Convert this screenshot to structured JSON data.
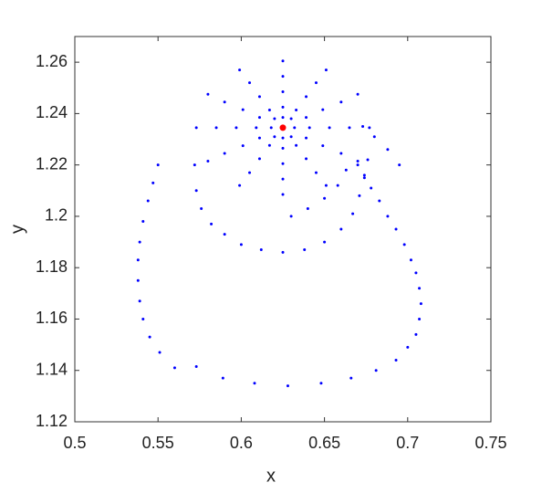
{
  "chart_data": {
    "type": "scatter",
    "xlabel": "x",
    "ylabel": "y",
    "xlim": [
      0.5,
      0.75
    ],
    "ylim": [
      1.12,
      1.27
    ],
    "xticks": [
      0.5,
      0.55,
      0.6,
      0.65,
      0.7,
      0.75
    ],
    "yticks": [
      1.12,
      1.14,
      1.16,
      1.18,
      1.2,
      1.22,
      1.24,
      1.26
    ],
    "series": [
      {
        "color": "#0000ff",
        "x": [
          0.55,
          0.547,
          0.544,
          0.541,
          0.539,
          0.538,
          0.538,
          0.539,
          0.541,
          0.545,
          0.551,
          0.56,
          0.573,
          0.589,
          0.608,
          0.628,
          0.648,
          0.666,
          0.681,
          0.693,
          0.7,
          0.705,
          0.707,
          0.708,
          0.707,
          0.705,
          0.702,
          0.698,
          0.693,
          0.688,
          0.683,
          0.678,
          0.674,
          0.67,
          0.572,
          0.573,
          0.576,
          0.582,
          0.59,
          0.6,
          0.612,
          0.625,
          0.638,
          0.65,
          0.66,
          0.667,
          0.671,
          0.674,
          0.676,
          0.63,
          0.64,
          0.65,
          0.658,
          0.663,
          0.695,
          0.688,
          0.68,
          0.673,
          0.677,
          0.67,
          0.651,
          0.625,
          0.599,
          0.58,
          0.573,
          0.58,
          0.599,
          0.625,
          0.651,
          0.67,
          0.665,
          0.66,
          0.645,
          0.625,
          0.605,
          0.59,
          0.585,
          0.59,
          0.605,
          0.625,
          0.645,
          0.66,
          0.653,
          0.649,
          0.639,
          0.625,
          0.611,
          0.601,
          0.597,
          0.601,
          0.611,
          0.625,
          0.639,
          0.649,
          0.641,
          0.639,
          0.633,
          0.625,
          0.617,
          0.611,
          0.609,
          0.611,
          0.617,
          0.625,
          0.633,
          0.639,
          0.632,
          0.63,
          0.625,
          0.62,
          0.618,
          0.62,
          0.625,
          0.63
        ],
        "y": [
          1.22,
          1.213,
          1.206,
          1.198,
          1.19,
          1.183,
          1.175,
          1.167,
          1.16,
          1.153,
          1.147,
          1.141,
          1.1415,
          1.137,
          1.135,
          1.134,
          1.135,
          1.137,
          1.14,
          1.144,
          1.149,
          1.154,
          1.16,
          1.166,
          1.172,
          1.178,
          1.183,
          1.189,
          1.195,
          1.2,
          1.206,
          1.211,
          1.216,
          1.22,
          1.22,
          1.21,
          1.203,
          1.197,
          1.193,
          1.189,
          1.187,
          1.186,
          1.187,
          1.19,
          1.195,
          1.201,
          1.208,
          1.215,
          1.222,
          1.2,
          1.203,
          1.207,
          1.212,
          1.218,
          1.22,
          1.226,
          1.231,
          1.235,
          1.2345,
          1.2475,
          1.257,
          1.2605,
          1.257,
          1.2475,
          1.2345,
          1.2215,
          1.212,
          1.2085,
          1.212,
          1.2215,
          1.2345,
          1.2445,
          1.252,
          1.2545,
          1.252,
          1.2445,
          1.2345,
          1.2245,
          1.217,
          1.2145,
          1.217,
          1.2245,
          1.2345,
          1.2415,
          1.2466,
          1.2485,
          1.2466,
          1.2415,
          1.2345,
          1.2275,
          1.2224,
          1.2205,
          1.2224,
          1.2275,
          1.2345,
          1.2385,
          1.2414,
          1.2425,
          1.2414,
          1.2385,
          1.2345,
          1.2305,
          1.2276,
          1.2265,
          1.2276,
          1.2305,
          1.2345,
          1.238,
          1.2385,
          1.238,
          1.2345,
          1.231,
          1.2305,
          1.231
        ]
      },
      {
        "color": "#ff0000",
        "x": [
          0.625
        ],
        "y": [
          1.2345
        ]
      }
    ]
  }
}
